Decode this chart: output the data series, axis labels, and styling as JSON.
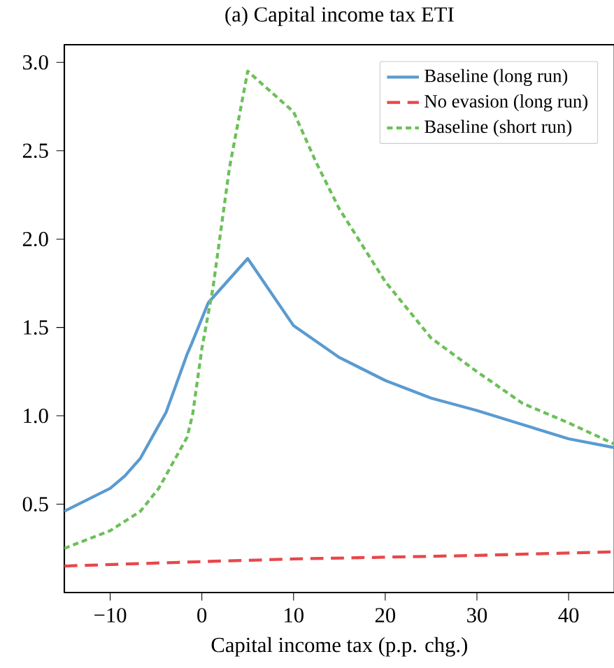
{
  "chart_data": {
    "type": "line",
    "title": "(a) Capital income tax ETI",
    "xlabel": "Capital income tax (p.p. chg.)",
    "xlim": [
      -15,
      45
    ],
    "ylim": [
      0.0,
      3.1
    ],
    "xticks": [
      {
        "value": -10,
        "label": "−10"
      },
      0,
      10,
      20,
      30,
      40
    ],
    "yticks": [
      0.5,
      {
        "value": 1,
        "label": "1.0"
      },
      1.5,
      {
        "value": 2,
        "label": "2.0"
      },
      2.5,
      {
        "value": 3,
        "label": "3.0"
      }
    ],
    "legend": "top right",
    "grid": false,
    "series": [
      {
        "name": "Baseline (long run)",
        "color": "#5a9bd0",
        "line_style": "solid",
        "x": [
          -15,
          -10,
          -8.4,
          -6.7,
          -5.2,
          -3.9,
          -1.6,
          -1.1,
          0.7,
          5,
          10,
          15,
          20,
          25,
          30,
          35,
          40,
          45
        ],
        "values": [
          0.46,
          0.59,
          0.66,
          0.76,
          0.9,
          1.02,
          1.35,
          1.41,
          1.64,
          1.89,
          1.51,
          1.33,
          1.2,
          1.1,
          1.03,
          0.95,
          0.87,
          0.82
        ]
      },
      {
        "name": "No evasion (long run)",
        "color": "#e8474a",
        "line_style": "dashed",
        "x": [
          -15,
          0,
          10,
          20,
          30,
          45
        ],
        "values": [
          0.15,
          0.175,
          0.19,
          0.2,
          0.21,
          0.23
        ]
      },
      {
        "name": "Baseline (short run)",
        "color": "#6cc05a",
        "line_style": "dotted",
        "x": [
          -15,
          -10,
          -6.7,
          -4.7,
          -1.6,
          -1,
          0,
          1.2,
          3,
          5,
          10,
          12.5,
          15,
          20,
          25,
          30,
          35,
          40,
          45
        ],
        "values": [
          0.25,
          0.35,
          0.46,
          0.59,
          0.88,
          1.01,
          1.38,
          1.72,
          2.4,
          2.95,
          2.72,
          2.43,
          2.17,
          1.76,
          1.44,
          1.25,
          1.07,
          0.96,
          0.84
        ]
      }
    ]
  }
}
